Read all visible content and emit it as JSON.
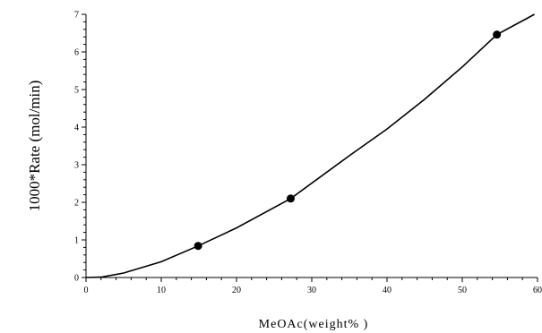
{
  "chart_data": {
    "type": "scatter",
    "xlabel": "MeOAc(weight% )",
    "ylabel": "1000*Rate (mol/min)",
    "xlim": [
      0,
      60
    ],
    "ylim": [
      0,
      7
    ],
    "x_ticks": [
      "0",
      "10",
      "20",
      "30",
      "40",
      "50",
      "60"
    ],
    "y_ticks": [
      "0",
      "1",
      "2",
      "3",
      "4",
      "5",
      "6",
      "7"
    ],
    "grid": false,
    "points": [
      {
        "x": 14.9,
        "y": 0.84
      },
      {
        "x": 27.2,
        "y": 2.1
      },
      {
        "x": 54.6,
        "y": 6.46
      }
    ],
    "fit_curve": [
      {
        "x": 0,
        "y": 0
      },
      {
        "x": 2,
        "y": 0.01
      },
      {
        "x": 5,
        "y": 0.12
      },
      {
        "x": 10,
        "y": 0.42
      },
      {
        "x": 14.9,
        "y": 0.84
      },
      {
        "x": 20,
        "y": 1.32
      },
      {
        "x": 27.2,
        "y": 2.1
      },
      {
        "x": 35,
        "y": 3.24
      },
      {
        "x": 40,
        "y": 3.95
      },
      {
        "x": 45,
        "y": 4.74
      },
      {
        "x": 50,
        "y": 5.6
      },
      {
        "x": 54.6,
        "y": 6.46
      },
      {
        "x": 59.6,
        "y": 7.0
      }
    ]
  }
}
